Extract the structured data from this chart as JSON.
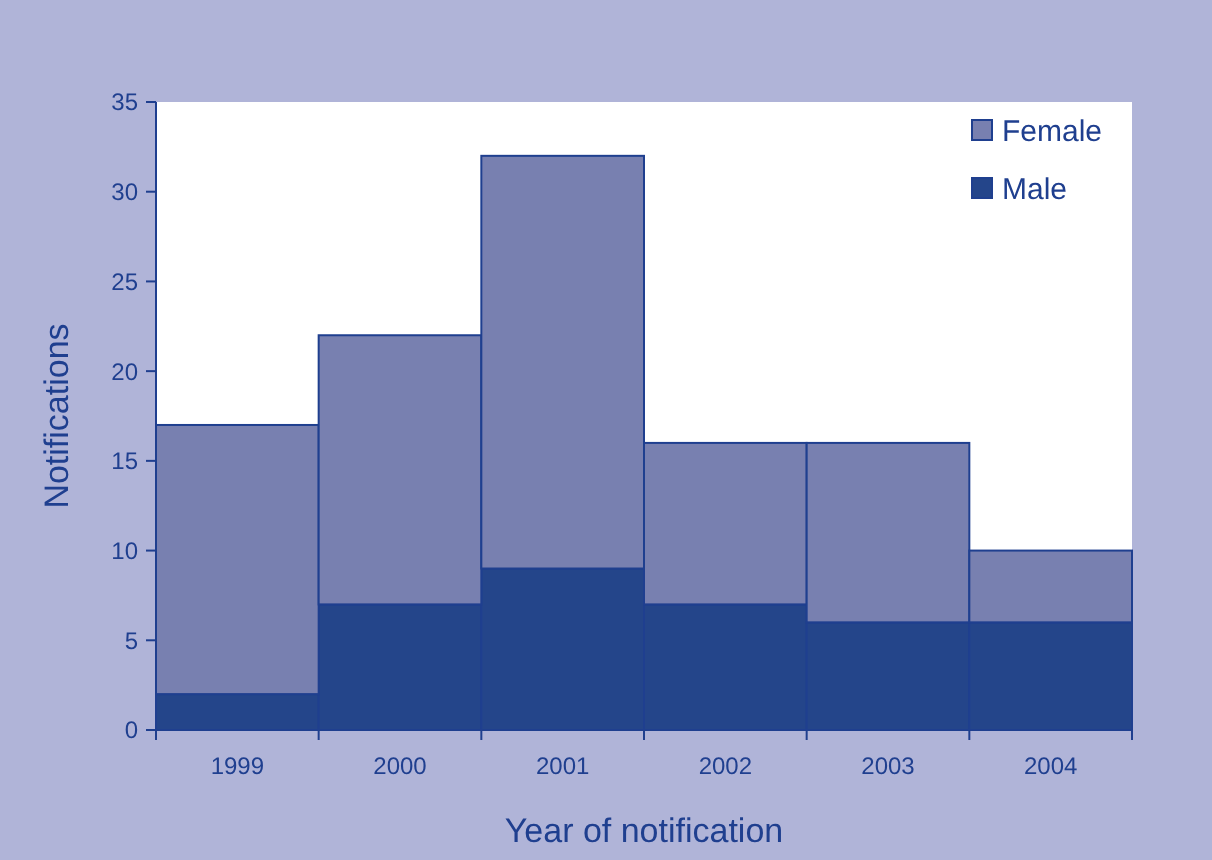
{
  "chart_data": {
    "type": "bar",
    "stacked": true,
    "xlabel": "Year of notification",
    "ylabel": "Notifications",
    "categories": [
      "1999",
      "2000",
      "2001",
      "2002",
      "2003",
      "2004"
    ],
    "series": [
      {
        "name": "Male",
        "color": "#24458a",
        "values": [
          2,
          7,
          9,
          7,
          6,
          6
        ]
      },
      {
        "name": "Female",
        "color": "#7880b0",
        "values": [
          15,
          15,
          23,
          9,
          10,
          4
        ]
      }
    ],
    "ylim": [
      0,
      35
    ],
    "yticks": [
      0,
      5,
      10,
      15,
      20,
      25,
      30,
      35
    ],
    "grid": false,
    "legend": "top right"
  }
}
